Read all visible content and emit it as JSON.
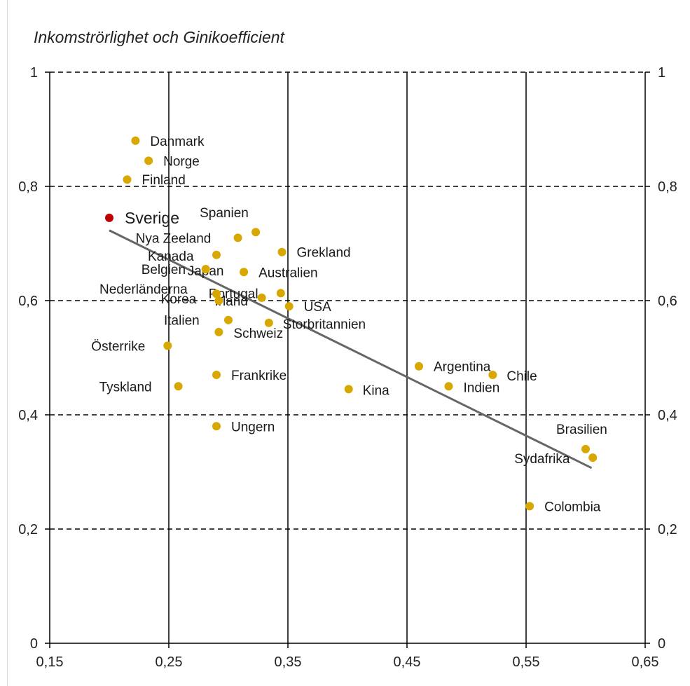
{
  "chart_data": {
    "type": "scatter",
    "title": "Inkomströrlighet och Ginikoefficient",
    "xlabel": "",
    "ylabel": "",
    "xlim": [
      0.15,
      0.65
    ],
    "ylim": [
      0,
      1
    ],
    "x_ticks": [
      0.15,
      0.25,
      0.35,
      0.45,
      0.55,
      0.65
    ],
    "x_tick_labels": [
      "0,15",
      "0,25",
      "0,35",
      "0,45",
      "0,55",
      "0,65"
    ],
    "y_ticks": [
      0,
      0.2,
      0.4,
      0.6,
      0.8,
      1
    ],
    "y_tick_labels": [
      "0",
      "0,2",
      "0,4",
      "0,6",
      "0,8",
      "1"
    ],
    "secondary_y_axis": true,
    "grid": "dashed horizontal, solid vertical",
    "colors": {
      "point": "#d9a800",
      "highlight": "#c00000",
      "trendline": "#666666",
      "grid": "#000000"
    },
    "points": [
      {
        "label": "Danmark",
        "x": 0.222,
        "y": 0.88
      },
      {
        "label": "Norge",
        "x": 0.233,
        "y": 0.845
      },
      {
        "label": "Finland",
        "x": 0.215,
        "y": 0.812
      },
      {
        "label": "Sverige",
        "x": 0.2,
        "y": 0.745,
        "highlight": true
      },
      {
        "label": "Spanien",
        "x": 0.323,
        "y": 0.72
      },
      {
        "label": "Nya Zeeland",
        "x": 0.308,
        "y": 0.71
      },
      {
        "label": "Kanada",
        "x": 0.29,
        "y": 0.68
      },
      {
        "label": "Grekland",
        "x": 0.345,
        "y": 0.685
      },
      {
        "label": "Belgien",
        "x": 0.281,
        "y": 0.655
      },
      {
        "label": "Japan",
        "x": 0.281,
        "y": 0.655
      },
      {
        "label": "Australien",
        "x": 0.313,
        "y": 0.65
      },
      {
        "label": "Nederländerna",
        "x": 0.29,
        "y": 0.612
      },
      {
        "label": "Portugal",
        "x": 0.344,
        "y": 0.613
      },
      {
        "label": "Korea",
        "x": 0.328,
        "y": 0.605
      },
      {
        "label": "Irland",
        "x": 0.292,
        "y": 0.6
      },
      {
        "label": "USA",
        "x": 0.351,
        "y": 0.59
      },
      {
        "label": "Italien",
        "x": 0.3,
        "y": 0.566
      },
      {
        "label": "Storbritannien",
        "x": 0.334,
        "y": 0.561
      },
      {
        "label": "Schweiz",
        "x": 0.292,
        "y": 0.545
      },
      {
        "label": "Österrike",
        "x": 0.249,
        "y": 0.521
      },
      {
        "label": "Frankrike",
        "x": 0.29,
        "y": 0.47
      },
      {
        "label": "Tyskland",
        "x": 0.258,
        "y": 0.45
      },
      {
        "label": "Ungern",
        "x": 0.29,
        "y": 0.38
      },
      {
        "label": "Kina",
        "x": 0.401,
        "y": 0.445
      },
      {
        "label": "Argentina",
        "x": 0.46,
        "y": 0.485
      },
      {
        "label": "Indien",
        "x": 0.485,
        "y": 0.45
      },
      {
        "label": "Chile",
        "x": 0.522,
        "y": 0.47
      },
      {
        "label": "Brasilien",
        "x": 0.6,
        "y": 0.34
      },
      {
        "label": "Sydafrika",
        "x": 0.606,
        "y": 0.325
      },
      {
        "label": "Colombia",
        "x": 0.553,
        "y": 0.24
      }
    ],
    "trendline": {
      "x": [
        0.2,
        0.605
      ],
      "y": [
        0.723,
        0.307
      ]
    }
  }
}
